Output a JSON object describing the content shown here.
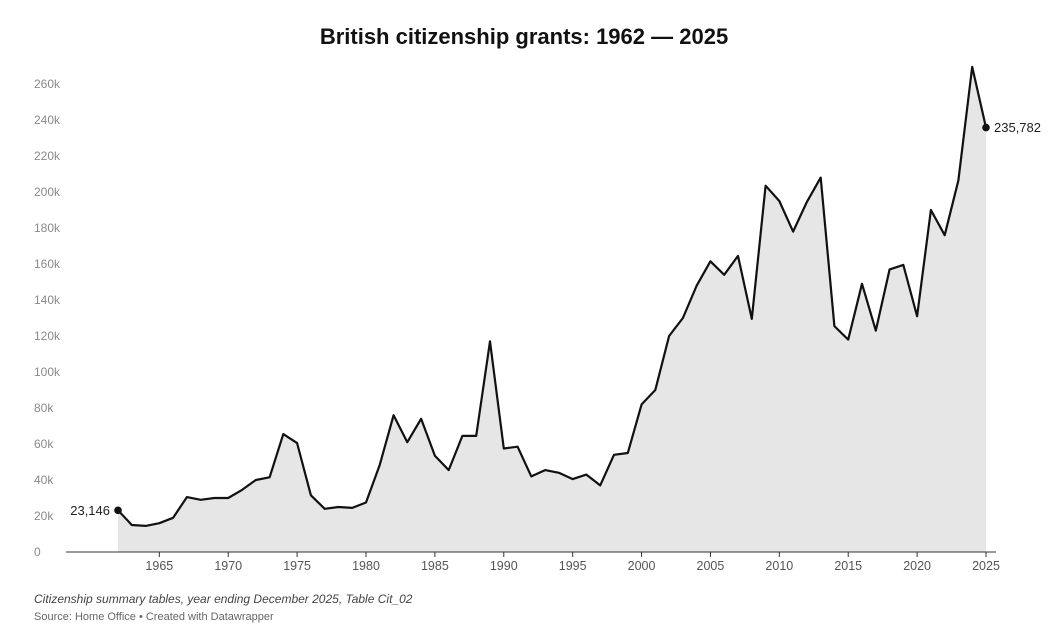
{
  "chart_data": {
    "type": "area",
    "title": "British citizenship grants: 1962 — 2025",
    "x": [
      1962,
      1963,
      1964,
      1965,
      1966,
      1967,
      1968,
      1969,
      1970,
      1971,
      1972,
      1973,
      1974,
      1975,
      1976,
      1977,
      1978,
      1979,
      1980,
      1981,
      1982,
      1983,
      1984,
      1985,
      1986,
      1987,
      1988,
      1989,
      1990,
      1991,
      1992,
      1993,
      1994,
      1995,
      1996,
      1997,
      1998,
      1999,
      2000,
      2001,
      2002,
      2003,
      2004,
      2005,
      2006,
      2007,
      2008,
      2009,
      2010,
      2011,
      2012,
      2013,
      2014,
      2015,
      2016,
      2017,
      2018,
      2019,
      2020,
      2021,
      2022,
      2023,
      2024,
      2025
    ],
    "values": [
      23146,
      15000,
      14500,
      16000,
      19000,
      30500,
      29000,
      30000,
      30000,
      34500,
      40000,
      41500,
      65500,
      60500,
      31500,
      24000,
      25000,
      24500,
      27500,
      48500,
      76000,
      61000,
      74000,
      53500,
      45500,
      64500,
      64500,
      117000,
      57500,
      58500,
      42000,
      45500,
      44000,
      40500,
      43000,
      37000,
      54000,
      55000,
      82000,
      90000,
      120000,
      130000,
      148000,
      161500,
      154000,
      164500,
      129500,
      203500,
      195000,
      178000,
      194500,
      208000,
      125500,
      118000,
      149000,
      123000,
      157000,
      159500,
      131000,
      190000,
      176000,
      206500,
      269500,
      235782
    ],
    "yticks": [
      "0",
      "20k",
      "40k",
      "60k",
      "80k",
      "100k",
      "120k",
      "140k",
      "160k",
      "180k",
      "200k",
      "220k",
      "240k",
      "260k"
    ],
    "ytick_values": [
      0,
      20000,
      40000,
      60000,
      80000,
      100000,
      120000,
      140000,
      160000,
      180000,
      200000,
      220000,
      240000,
      260000
    ],
    "xticks": [
      1965,
      1970,
      1975,
      1980,
      1985,
      1990,
      1995,
      2000,
      2005,
      2010,
      2015,
      2020,
      2025
    ],
    "ylim": [
      0,
      270000
    ],
    "xlim": [
      1962,
      2025
    ],
    "annotations": {
      "start": {
        "year": 1962,
        "label": "23,146"
      },
      "end": {
        "year": 2025,
        "label": "235,782"
      }
    },
    "grid": false,
    "colors": {
      "line": "#111111",
      "area": "#e6e6e6",
      "baseline": "#333333"
    }
  },
  "footer": {
    "notes": "Citizenship summary tables, year ending December 2025, Table Cit_02",
    "source": "Source: Home Office • Created with Datawrapper"
  }
}
